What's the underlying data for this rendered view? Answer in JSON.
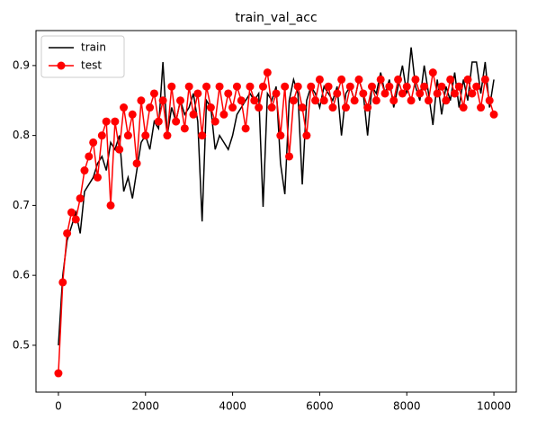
{
  "chart_data": {
    "type": "line",
    "title": "train_val_acc",
    "x": [
      0,
      100,
      200,
      300,
      400,
      500,
      600,
      700,
      800,
      900,
      1000,
      1100,
      1200,
      1300,
      1400,
      1500,
      1600,
      1700,
      1800,
      1900,
      2000,
      2100,
      2200,
      2300,
      2400,
      2500,
      2600,
      2700,
      2800,
      2900,
      3000,
      3100,
      3200,
      3300,
      3400,
      3500,
      3600,
      3700,
      3800,
      3900,
      4000,
      4100,
      4200,
      4300,
      4400,
      4500,
      4600,
      4700,
      4800,
      4900,
      5000,
      5100,
      5200,
      5300,
      5400,
      5500,
      5600,
      5700,
      5800,
      5900,
      6000,
      6100,
      6200,
      6300,
      6400,
      6500,
      6600,
      6700,
      6800,
      6900,
      7000,
      7100,
      7200,
      7300,
      7400,
      7500,
      7600,
      7700,
      7800,
      7900,
      8000,
      8100,
      8200,
      8300,
      8400,
      8500,
      8600,
      8700,
      8800,
      8900,
      9000,
      9100,
      9200,
      9300,
      9400,
      9500,
      9600,
      9700,
      9800,
      9900,
      10000
    ],
    "series": [
      {
        "name": "train",
        "color": "#000000",
        "marker": false,
        "values": [
          0.5,
          0.6,
          0.65,
          0.67,
          0.69,
          0.66,
          0.72,
          0.73,
          0.74,
          0.76,
          0.77,
          0.75,
          0.79,
          0.78,
          0.8,
          0.72,
          0.74,
          0.71,
          0.75,
          0.79,
          0.8,
          0.78,
          0.82,
          0.81,
          0.905,
          0.8,
          0.84,
          0.82,
          0.85,
          0.83,
          0.84,
          0.86,
          0.82,
          0.677,
          0.85,
          0.84,
          0.78,
          0.8,
          0.79,
          0.78,
          0.8,
          0.83,
          0.84,
          0.85,
          0.86,
          0.85,
          0.86,
          0.698,
          0.86,
          0.85,
          0.87,
          0.76,
          0.716,
          0.85,
          0.88,
          0.86,
          0.73,
          0.85,
          0.87,
          0.86,
          0.84,
          0.87,
          0.86,
          0.85,
          0.87,
          0.8,
          0.86,
          0.87,
          0.85,
          0.88,
          0.86,
          0.8,
          0.87,
          0.86,
          0.89,
          0.86,
          0.88,
          0.84,
          0.87,
          0.9,
          0.86,
          0.926,
          0.87,
          0.85,
          0.9,
          0.86,
          0.815,
          0.88,
          0.83,
          0.87,
          0.85,
          0.89,
          0.84,
          0.88,
          0.85,
          0.905,
          0.905,
          0.86,
          0.905,
          0.84,
          0.88
        ]
      },
      {
        "name": "test",
        "color": "#ff0000",
        "marker": true,
        "values": [
          0.46,
          0.59,
          0.66,
          0.69,
          0.68,
          0.71,
          0.75,
          0.77,
          0.79,
          0.74,
          0.8,
          0.82,
          0.7,
          0.82,
          0.78,
          0.84,
          0.8,
          0.83,
          0.76,
          0.85,
          0.8,
          0.84,
          0.86,
          0.82,
          0.85,
          0.8,
          0.87,
          0.82,
          0.85,
          0.81,
          0.87,
          0.83,
          0.86,
          0.8,
          0.87,
          0.84,
          0.82,
          0.87,
          0.83,
          0.86,
          0.84,
          0.87,
          0.85,
          0.81,
          0.87,
          0.85,
          0.84,
          0.87,
          0.89,
          0.84,
          0.86,
          0.8,
          0.87,
          0.77,
          0.85,
          0.87,
          0.84,
          0.8,
          0.87,
          0.85,
          0.88,
          0.85,
          0.87,
          0.84,
          0.86,
          0.88,
          0.84,
          0.87,
          0.85,
          0.88,
          0.86,
          0.84,
          0.87,
          0.85,
          0.88,
          0.86,
          0.87,
          0.85,
          0.88,
          0.86,
          0.87,
          0.85,
          0.88,
          0.86,
          0.87,
          0.85,
          0.89,
          0.86,
          0.87,
          0.85,
          0.88,
          0.86,
          0.87,
          0.84,
          0.88,
          0.86,
          0.87,
          0.84,
          0.88,
          0.85,
          0.83
        ]
      }
    ],
    "xlim": [
      -515,
      10515
    ],
    "xticks": [
      0,
      2000,
      4000,
      6000,
      8000,
      10000
    ],
    "ylim": [
      0.433,
      0.95
    ],
    "yticks": [
      0.5,
      0.6,
      0.7,
      0.8,
      0.9
    ],
    "grid": false,
    "legend": "upper left"
  }
}
